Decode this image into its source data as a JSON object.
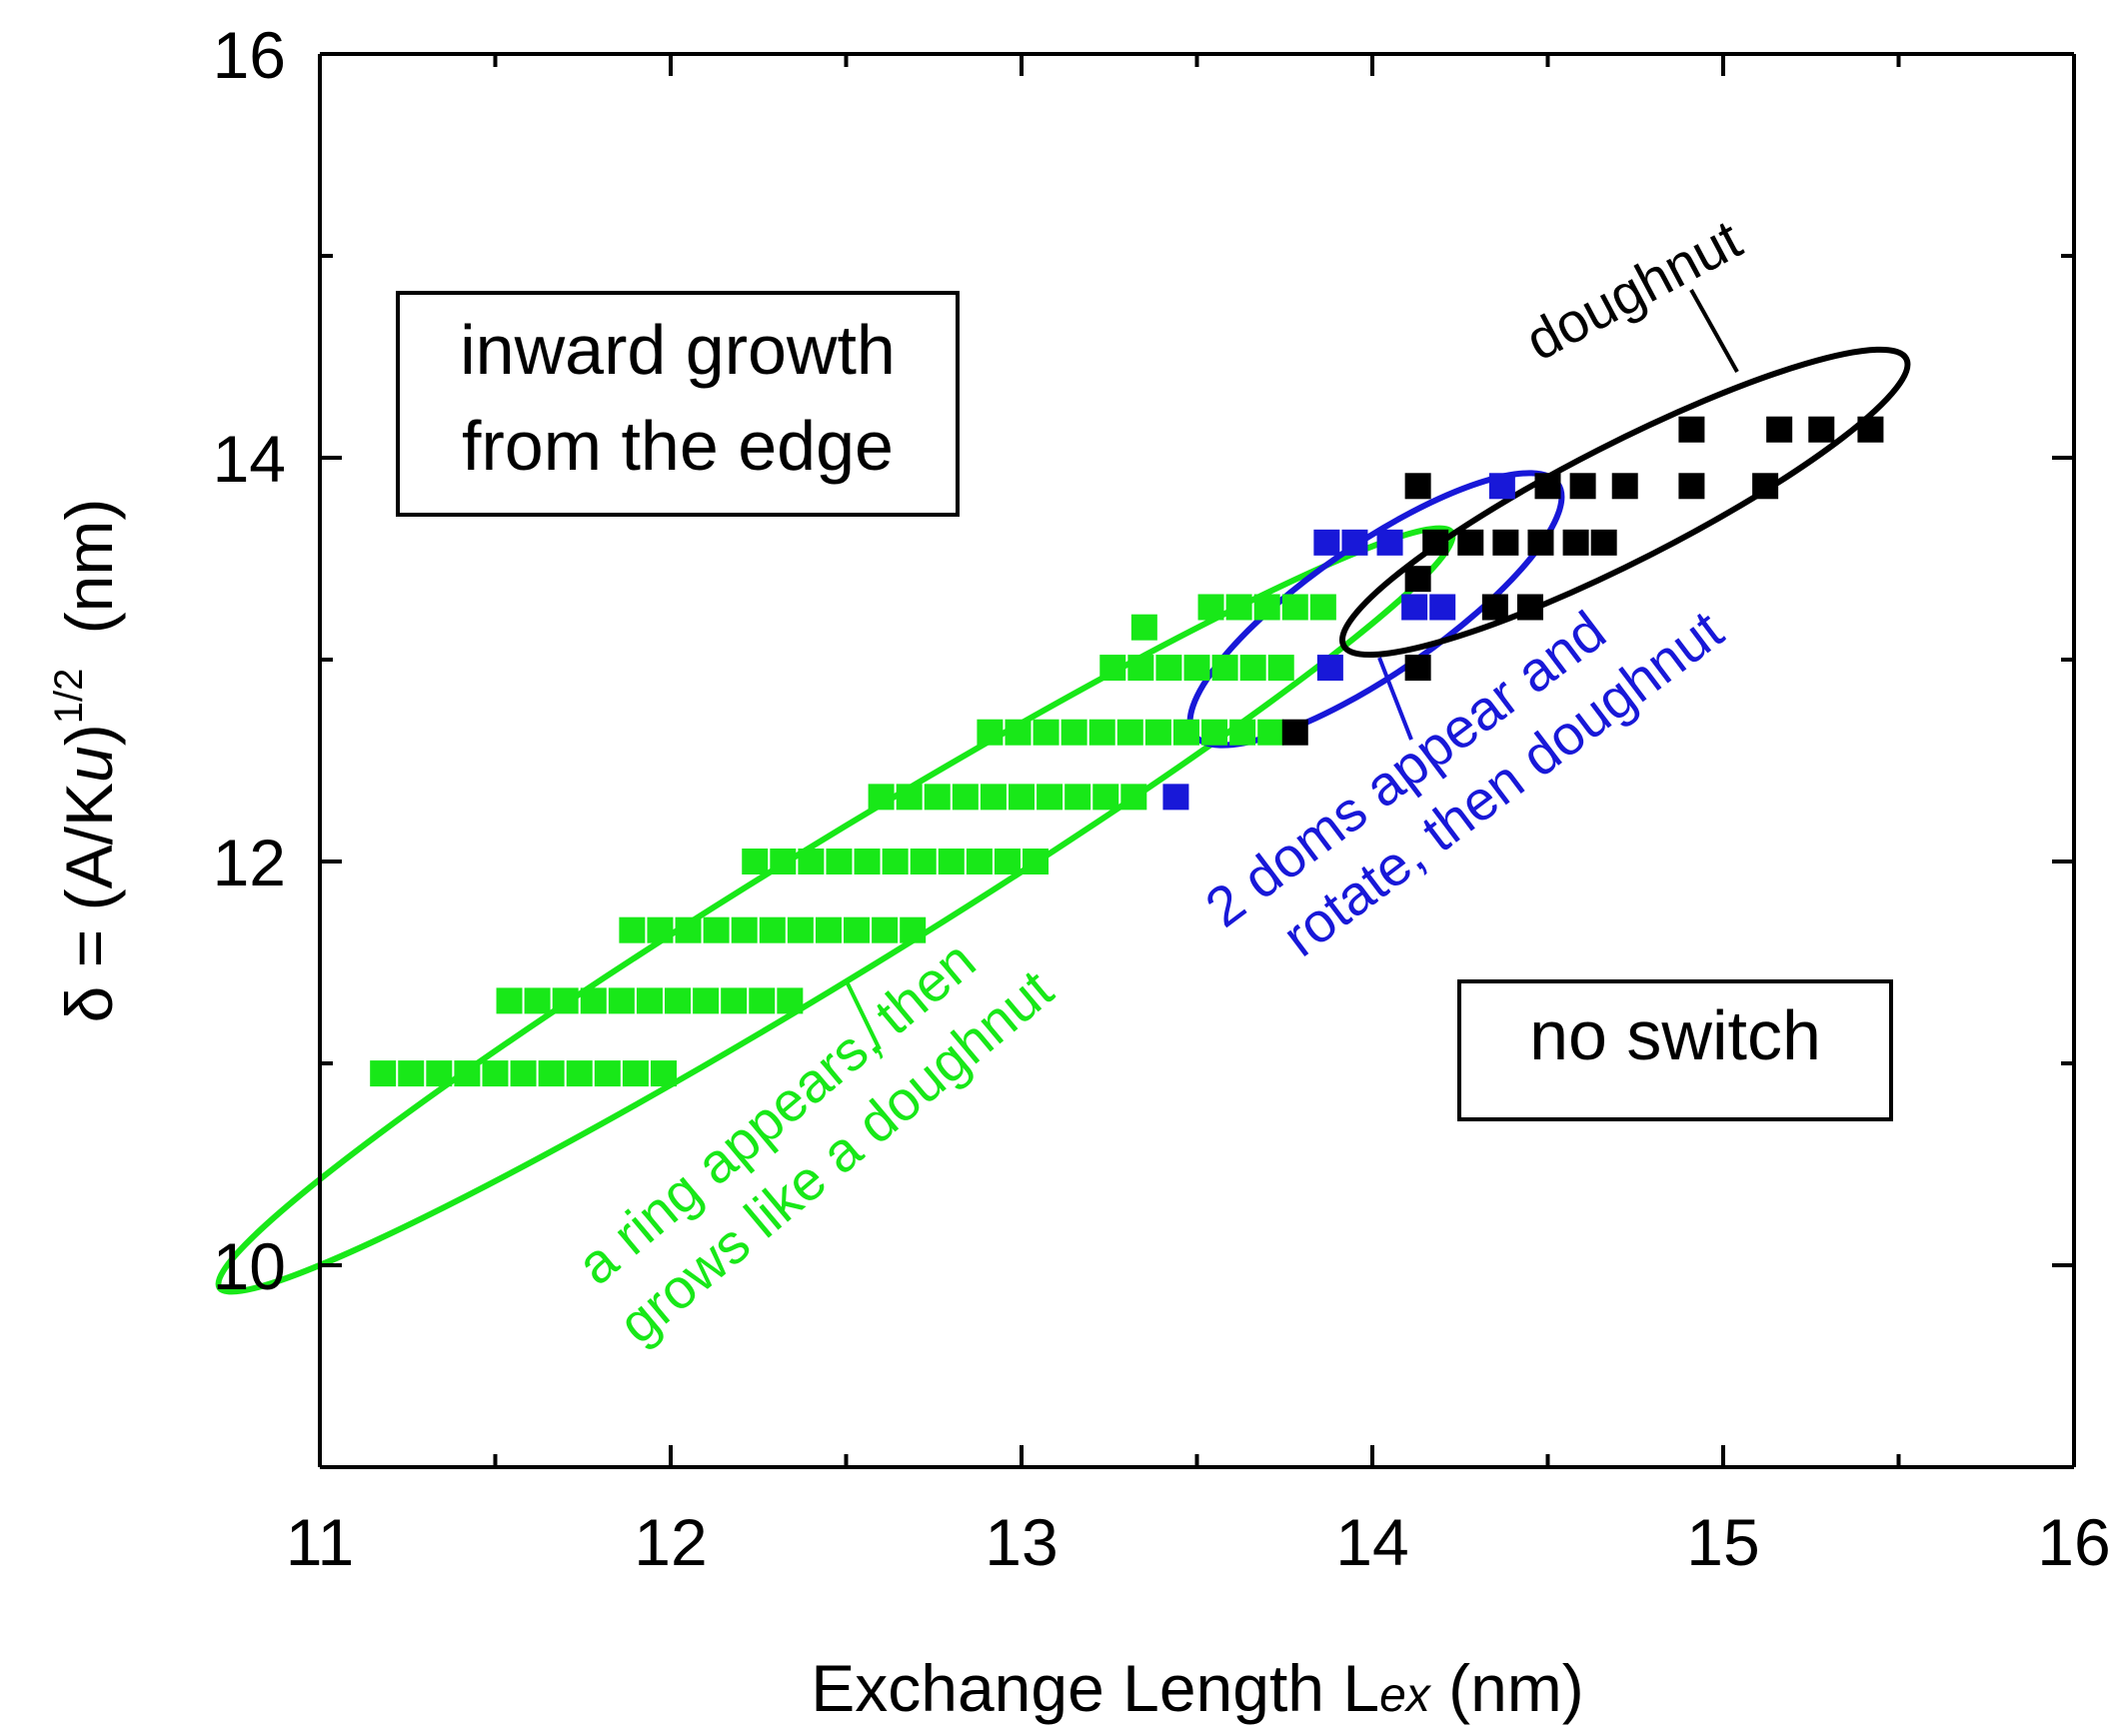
{
  "chart_data": {
    "type": "scatter",
    "xlabel": "Exchange Length Lex (nm)",
    "xlabel_parts": [
      "Exchange Length L",
      "ex",
      " (nm)"
    ],
    "ylabel": "δ = (A/Ku)^1/2 (nm)",
    "ylabel_parts": [
      "δ = (A/K",
      "u",
      ")",
      "1/2",
      " (nm)"
    ],
    "xlim": [
      11,
      16
    ],
    "ylim": [
      9,
      16
    ],
    "xticks": [
      11,
      12,
      13,
      14,
      15,
      16
    ],
    "yticks": [
      10,
      12,
      14,
      16
    ],
    "colors": {
      "green": "#18e818",
      "blue": "#1818d8",
      "black": "#000000"
    },
    "series": [
      {
        "name": "a ring appears, then grows like a doughnut",
        "color": "green",
        "points": [
          [
            11.18,
            10.95
          ],
          [
            11.26,
            10.95
          ],
          [
            11.34,
            10.95
          ],
          [
            11.42,
            10.95
          ],
          [
            11.5,
            10.95
          ],
          [
            11.58,
            10.95
          ],
          [
            11.66,
            10.95
          ],
          [
            11.74,
            10.95
          ],
          [
            11.82,
            10.95
          ],
          [
            11.9,
            10.95
          ],
          [
            11.98,
            10.95
          ],
          [
            11.54,
            11.31
          ],
          [
            11.62,
            11.31
          ],
          [
            11.7,
            11.31
          ],
          [
            11.78,
            11.31
          ],
          [
            11.86,
            11.31
          ],
          [
            11.94,
            11.31
          ],
          [
            12.02,
            11.31
          ],
          [
            12.1,
            11.31
          ],
          [
            12.18,
            11.31
          ],
          [
            12.26,
            11.31
          ],
          [
            12.34,
            11.31
          ],
          [
            11.89,
            11.66
          ],
          [
            11.97,
            11.66
          ],
          [
            12.05,
            11.66
          ],
          [
            12.13,
            11.66
          ],
          [
            12.21,
            11.66
          ],
          [
            12.29,
            11.66
          ],
          [
            12.37,
            11.66
          ],
          [
            12.45,
            11.66
          ],
          [
            12.53,
            11.66
          ],
          [
            12.61,
            11.66
          ],
          [
            12.69,
            11.66
          ],
          [
            12.24,
            12.0
          ],
          [
            12.32,
            12.0
          ],
          [
            12.4,
            12.0
          ],
          [
            12.48,
            12.0
          ],
          [
            12.56,
            12.0
          ],
          [
            12.64,
            12.0
          ],
          [
            12.72,
            12.0
          ],
          [
            12.8,
            12.0
          ],
          [
            12.88,
            12.0
          ],
          [
            12.96,
            12.0
          ],
          [
            13.04,
            12.0
          ],
          [
            12.6,
            12.32
          ],
          [
            12.68,
            12.32
          ],
          [
            12.76,
            12.32
          ],
          [
            12.84,
            12.32
          ],
          [
            12.92,
            12.32
          ],
          [
            13.0,
            12.32
          ],
          [
            13.08,
            12.32
          ],
          [
            13.16,
            12.32
          ],
          [
            13.24,
            12.32
          ],
          [
            13.32,
            12.32
          ],
          [
            12.91,
            12.64
          ],
          [
            12.99,
            12.64
          ],
          [
            13.07,
            12.64
          ],
          [
            13.15,
            12.64
          ],
          [
            13.23,
            12.64
          ],
          [
            13.31,
            12.64
          ],
          [
            13.39,
            12.64
          ],
          [
            13.47,
            12.64
          ],
          [
            13.55,
            12.64
          ],
          [
            13.63,
            12.64
          ],
          [
            13.71,
            12.64
          ],
          [
            13.26,
            12.96
          ],
          [
            13.34,
            12.96
          ],
          [
            13.42,
            12.96
          ],
          [
            13.5,
            12.96
          ],
          [
            13.58,
            12.96
          ],
          [
            13.66,
            12.96
          ],
          [
            13.74,
            12.96
          ],
          [
            13.35,
            13.16
          ],
          [
            13.54,
            13.26
          ],
          [
            13.62,
            13.26
          ],
          [
            13.7,
            13.26
          ],
          [
            13.78,
            13.26
          ],
          [
            13.86,
            13.26
          ]
        ]
      },
      {
        "name": "2 doms appear and rotate, then doughnut",
        "color": "blue",
        "points": [
          [
            13.44,
            12.32
          ],
          [
            13.88,
            12.96
          ],
          [
            14.12,
            13.26
          ],
          [
            14.2,
            13.26
          ],
          [
            13.87,
            13.58
          ],
          [
            13.95,
            13.58
          ],
          [
            14.05,
            13.58
          ],
          [
            14.37,
            13.86
          ]
        ]
      },
      {
        "name": "doughnut",
        "color": "black",
        "points": [
          [
            13.78,
            12.64
          ],
          [
            14.13,
            12.96
          ],
          [
            14.13,
            13.4
          ],
          [
            14.35,
            13.26
          ],
          [
            14.45,
            13.26
          ],
          [
            14.18,
            13.58
          ],
          [
            14.28,
            13.58
          ],
          [
            14.38,
            13.58
          ],
          [
            14.48,
            13.58
          ],
          [
            14.58,
            13.58
          ],
          [
            14.66,
            13.58
          ],
          [
            14.13,
            13.86
          ],
          [
            14.5,
            13.86
          ],
          [
            14.6,
            13.86
          ],
          [
            14.72,
            13.86
          ],
          [
            14.91,
            13.86
          ],
          [
            15.12,
            13.86
          ],
          [
            14.91,
            14.14
          ],
          [
            15.16,
            14.14
          ],
          [
            15.28,
            14.14
          ],
          [
            15.42,
            14.14
          ]
        ]
      }
    ],
    "regions": [
      {
        "color": "green",
        "cx": 12.47,
        "cy": 11.76,
        "rx": 2.06,
        "ry": 0.33,
        "angle_deg": -31.5
      },
      {
        "color": "blue",
        "cx": 14.01,
        "cy": 13.25,
        "rx": 0.63,
        "ry": 0.32,
        "angle_deg": -34.5
      },
      {
        "color": "black",
        "cx": 14.72,
        "cy": 13.78,
        "rx": 0.9,
        "ry": 0.29,
        "angle_deg": -27
      }
    ],
    "annotations": {
      "inward_box": [
        "inward growth",
        "from the edge"
      ],
      "no_switch_box": "no switch",
      "doughnut": "doughnut",
      "blue_label": [
        "2 doms appear and",
        "rotate, then doughnut"
      ],
      "green_label": [
        "a ring appears, then",
        "grows like a doughnut"
      ]
    }
  }
}
